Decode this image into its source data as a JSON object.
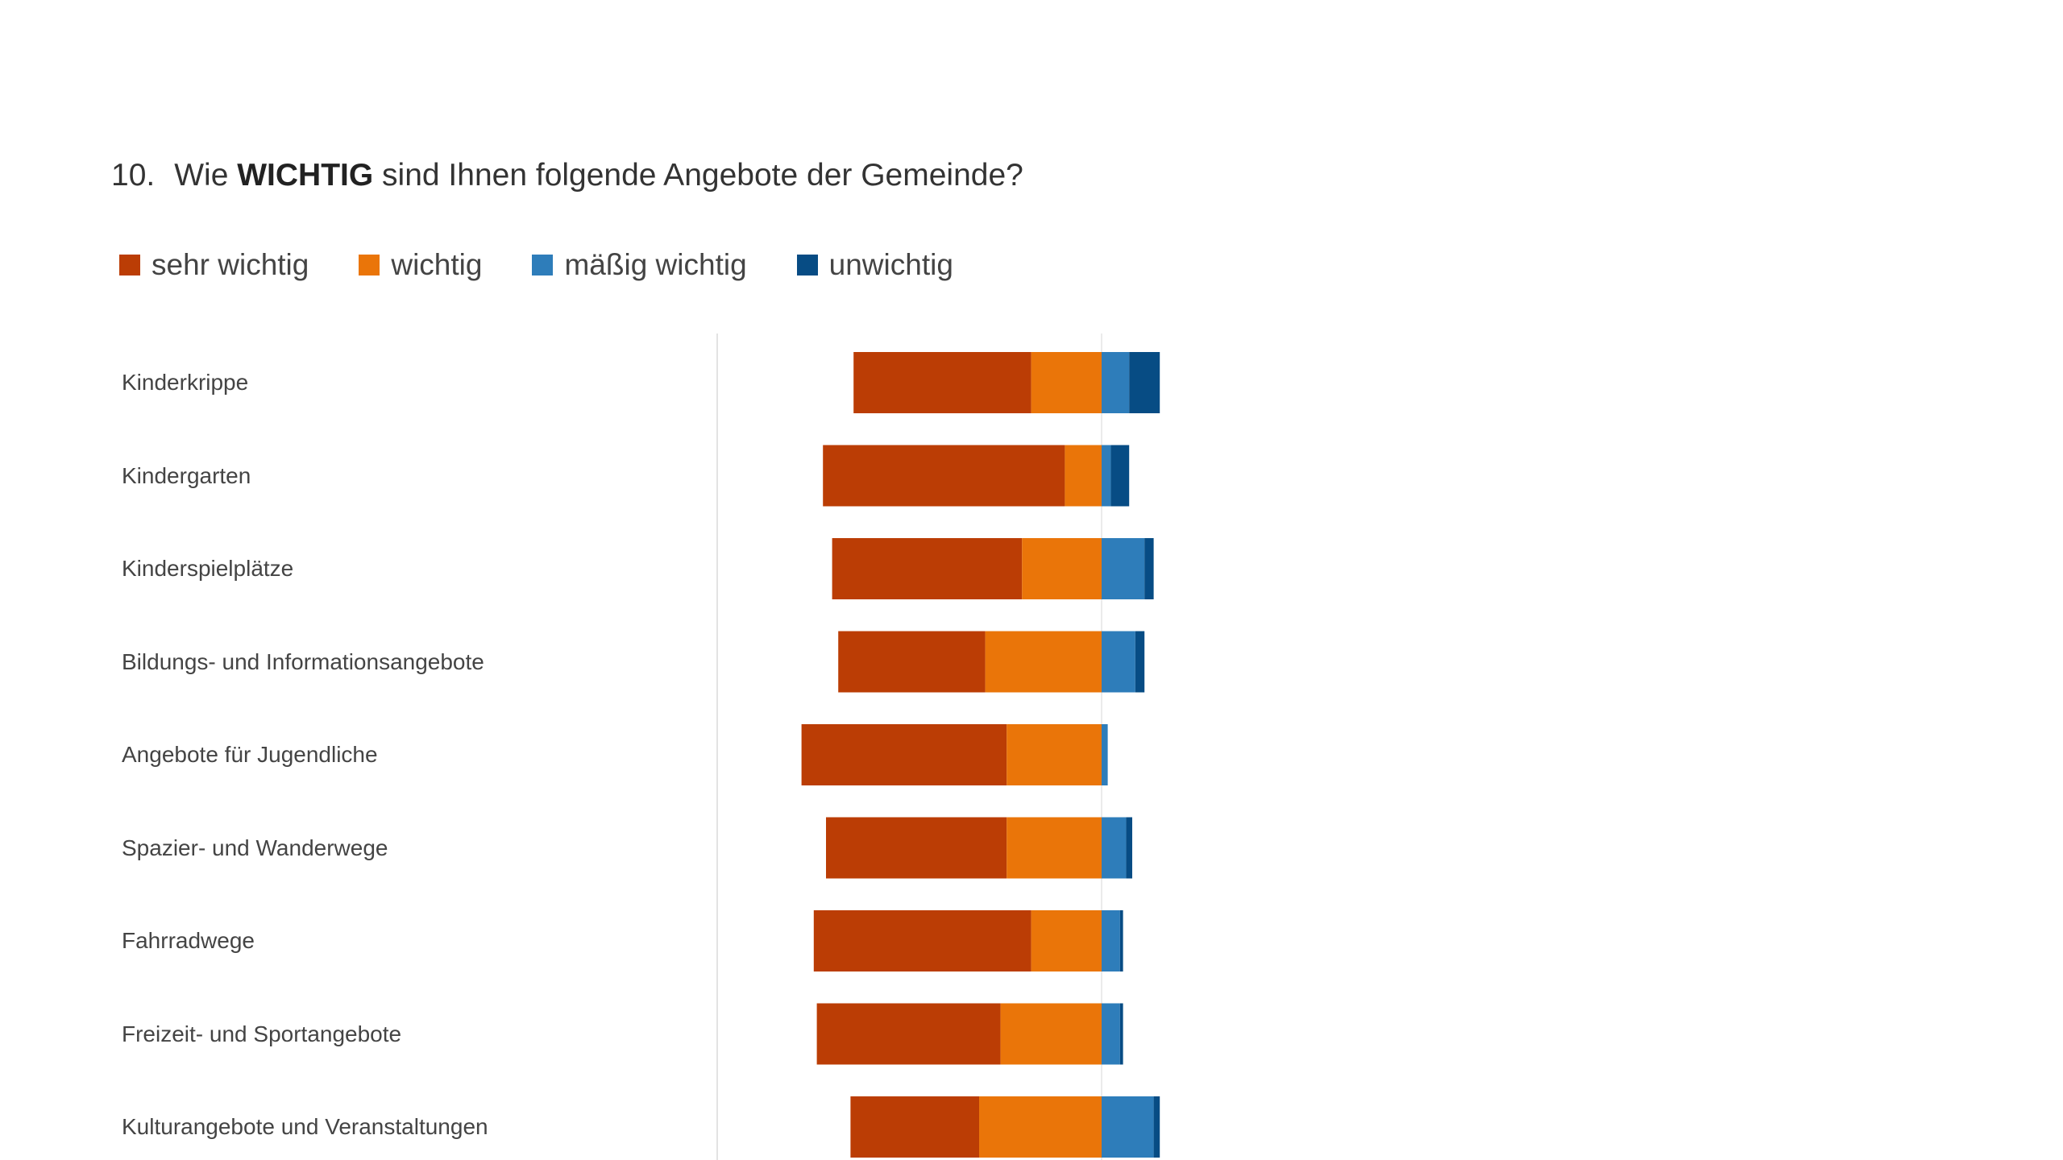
{
  "question": {
    "number": "10.",
    "text_before": "Wie",
    "text_strong": "WICHTIG",
    "text_after": "sind Ihnen folgende Angebote der Gemeinde?"
  },
  "legend": [
    {
      "label": "sehr wichtig",
      "color": "#BB3D05"
    },
    {
      "label": "wichtig",
      "color": "#EA7509"
    },
    {
      "label": "mäßig wichtig",
      "color": "#2E7DBA"
    },
    {
      "label": "unwichtig",
      "color": "#074C84"
    }
  ],
  "chart_data": {
    "type": "bar",
    "orientation": "horizontal",
    "stacked": "diverging",
    "categories": [
      "Kinderkrippe",
      "Kindergarten",
      "Kinderspielplätze",
      "Bildungs- und Informationsangebote",
      "Angebote für Jugendliche",
      "Spazier- und Wanderwege",
      "Fahrradwege",
      "Freizeit- und Sportangebote",
      "Kulturangebote und Veranstaltungen"
    ],
    "series": [
      {
        "name": "sehr wichtig",
        "color": "#BB3D05",
        "values": [
          58,
          79,
          62,
          48,
          67,
          59,
          71,
          60,
          42
        ]
      },
      {
        "name": "wichtig",
        "color": "#EA7509",
        "values": [
          23,
          12,
          26,
          38,
          31,
          31,
          23,
          33,
          40
        ]
      },
      {
        "name": "mäßig wichtig",
        "color": "#2E7DBA",
        "values": [
          9,
          3,
          14,
          11,
          2,
          8,
          6,
          6,
          17
        ]
      },
      {
        "name": "unwichtig",
        "color": "#074C84",
        "values": [
          10,
          6,
          3,
          3,
          0,
          2,
          1,
          1,
          2
        ]
      }
    ],
    "xlim": [
      -100,
      100
    ],
    "grid": false,
    "legend_position": "top"
  }
}
